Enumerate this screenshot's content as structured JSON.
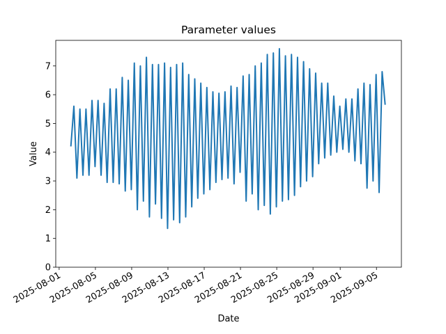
{
  "chart_data": {
    "type": "line",
    "title": "Parameter values",
    "xlabel": "Date",
    "ylabel": "Value",
    "x": [
      "2025-08-02T07:00",
      "2025-08-02T15:00",
      "2025-08-02T23:00",
      "2025-08-03T07:00",
      "2025-08-03T15:00",
      "2025-08-03T23:00",
      "2025-08-04T07:00",
      "2025-08-04T15:00",
      "2025-08-04T23:00",
      "2025-08-05T07:00",
      "2025-08-05T15:00",
      "2025-08-05T23:00",
      "2025-08-06T07:00",
      "2025-08-06T15:00",
      "2025-08-06T23:00",
      "2025-08-07T07:00",
      "2025-08-07T15:00",
      "2025-08-07T23:00",
      "2025-08-08T07:00",
      "2025-08-08T15:00",
      "2025-08-08T23:00",
      "2025-08-09T07:00",
      "2025-08-09T15:00",
      "2025-08-09T23:00",
      "2025-08-10T07:00",
      "2025-08-10T15:00",
      "2025-08-10T23:00",
      "2025-08-11T07:00",
      "2025-08-11T15:00",
      "2025-08-11T23:00",
      "2025-08-12T07:00",
      "2025-08-12T15:00",
      "2025-08-12T23:00",
      "2025-08-13T07:00",
      "2025-08-13T15:00",
      "2025-08-13T23:00",
      "2025-08-14T07:00",
      "2025-08-14T15:00",
      "2025-08-14T23:00",
      "2025-08-15T07:00",
      "2025-08-15T15:00",
      "2025-08-15T23:00",
      "2025-08-16T07:00",
      "2025-08-16T15:00",
      "2025-08-16T23:00",
      "2025-08-17T07:00",
      "2025-08-17T15:00",
      "2025-08-17T23:00",
      "2025-08-18T07:00",
      "2025-08-18T15:00",
      "2025-08-18T23:00",
      "2025-08-19T07:00",
      "2025-08-19T15:00",
      "2025-08-19T23:00",
      "2025-08-20T07:00",
      "2025-08-20T15:00",
      "2025-08-20T23:00",
      "2025-08-21T07:00",
      "2025-08-21T15:00",
      "2025-08-21T23:00",
      "2025-08-22T07:00",
      "2025-08-22T15:00",
      "2025-08-22T23:00",
      "2025-08-23T07:00",
      "2025-08-23T15:00",
      "2025-08-23T23:00",
      "2025-08-24T07:00",
      "2025-08-24T15:00",
      "2025-08-24T23:00",
      "2025-08-25T07:00",
      "2025-08-25T15:00",
      "2025-08-25T23:00",
      "2025-08-26T07:00",
      "2025-08-26T15:00",
      "2025-08-26T23:00",
      "2025-08-27T07:00",
      "2025-08-27T15:00",
      "2025-08-27T23:00",
      "2025-08-28T07:00",
      "2025-08-28T15:00",
      "2025-08-28T23:00",
      "2025-08-29T07:00",
      "2025-08-29T15:00",
      "2025-08-29T23:00",
      "2025-08-30T07:00",
      "2025-08-30T15:00",
      "2025-08-30T23:00",
      "2025-08-31T07:00",
      "2025-08-31T15:00",
      "2025-08-31T23:00",
      "2025-09-01T07:00",
      "2025-09-01T15:00",
      "2025-09-01T23:00",
      "2025-09-02T07:00",
      "2025-09-02T15:00",
      "2025-09-02T23:00",
      "2025-09-03T07:00",
      "2025-09-03T15:00",
      "2025-09-03T23:00",
      "2025-09-04T07:00",
      "2025-09-04T15:00",
      "2025-09-04T23:00",
      "2025-09-05T07:00",
      "2025-09-05T15:00",
      "2025-09-05T23:00"
    ],
    "series": [
      {
        "name": "Value",
        "color": "#1f77b4",
        "values": [
          4.2,
          5.6,
          3.1,
          5.5,
          3.2,
          5.5,
          3.2,
          5.8,
          3.5,
          5.8,
          3.2,
          5.7,
          2.95,
          6.2,
          2.95,
          6.2,
          2.9,
          6.6,
          2.65,
          6.5,
          2.7,
          7.1,
          2.0,
          7.0,
          2.3,
          7.3,
          1.75,
          7.05,
          2.2,
          7.05,
          1.7,
          7.1,
          1.35,
          6.95,
          1.65,
          7.05,
          1.55,
          7.1,
          1.75,
          6.7,
          2.1,
          6.55,
          2.4,
          6.4,
          2.55,
          6.25,
          2.7,
          6.1,
          2.95,
          6.05,
          3.05,
          6.1,
          3.1,
          6.3,
          2.9,
          6.25,
          3.3,
          6.65,
          2.3,
          6.7,
          2.55,
          7.0,
          2.0,
          7.1,
          2.15,
          7.4,
          1.85,
          7.45,
          2.1,
          7.6,
          2.3,
          7.35,
          2.35,
          7.4,
          2.5,
          7.3,
          2.8,
          7.15,
          3.0,
          6.9,
          3.15,
          6.75,
          3.6,
          6.4,
          3.8,
          6.4,
          3.9,
          5.95,
          4.0,
          5.6,
          4.1,
          5.85,
          4.0,
          5.85,
          3.7,
          6.2,
          3.6,
          6.4,
          2.75,
          6.35,
          3.0,
          6.7,
          2.6,
          6.8,
          5.65
        ]
      }
    ],
    "xlim": [
      "2025-07-31T15:00",
      "2025-09-07T18:00"
    ],
    "xticks": [
      "2025-08-01",
      "2025-08-05",
      "2025-08-09",
      "2025-08-13",
      "2025-08-17",
      "2025-08-21",
      "2025-08-25",
      "2025-08-29",
      "2025-09-01",
      "2025-09-05"
    ],
    "ylim": [
      0,
      7.89
    ],
    "yticks": [
      0,
      1,
      2,
      3,
      4,
      5,
      6,
      7
    ],
    "grid": false
  }
}
